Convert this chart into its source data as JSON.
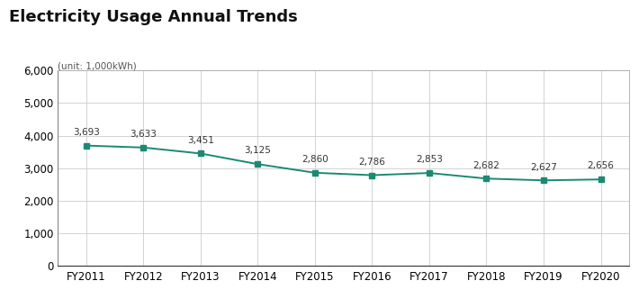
{
  "title": "Electricity Usage Annual Trends",
  "unit_label": "(unit: 1,000kWh)",
  "categories": [
    "FY2011",
    "FY2012",
    "FY2013",
    "FY2014",
    "FY2015",
    "FY2016",
    "FY2017",
    "FY2018",
    "FY2019",
    "FY2020"
  ],
  "values": [
    3693,
    3633,
    3451,
    3125,
    2860,
    2786,
    2853,
    2682,
    2627,
    2656
  ],
  "line_color": "#1a8a72",
  "marker_color": "#1a8a72",
  "marker_style": "s",
  "marker_size": 5,
  "ylim": [
    0,
    6000
  ],
  "yticks": [
    0,
    1000,
    2000,
    3000,
    4000,
    5000,
    6000
  ],
  "grid_color": "#cccccc",
  "vline_color": "#cccccc",
  "background_color": "#ffffff",
  "title_fontsize": 13,
  "axis_fontsize": 8.5,
  "label_fontsize": 7.5,
  "unit_fontsize": 7.5
}
